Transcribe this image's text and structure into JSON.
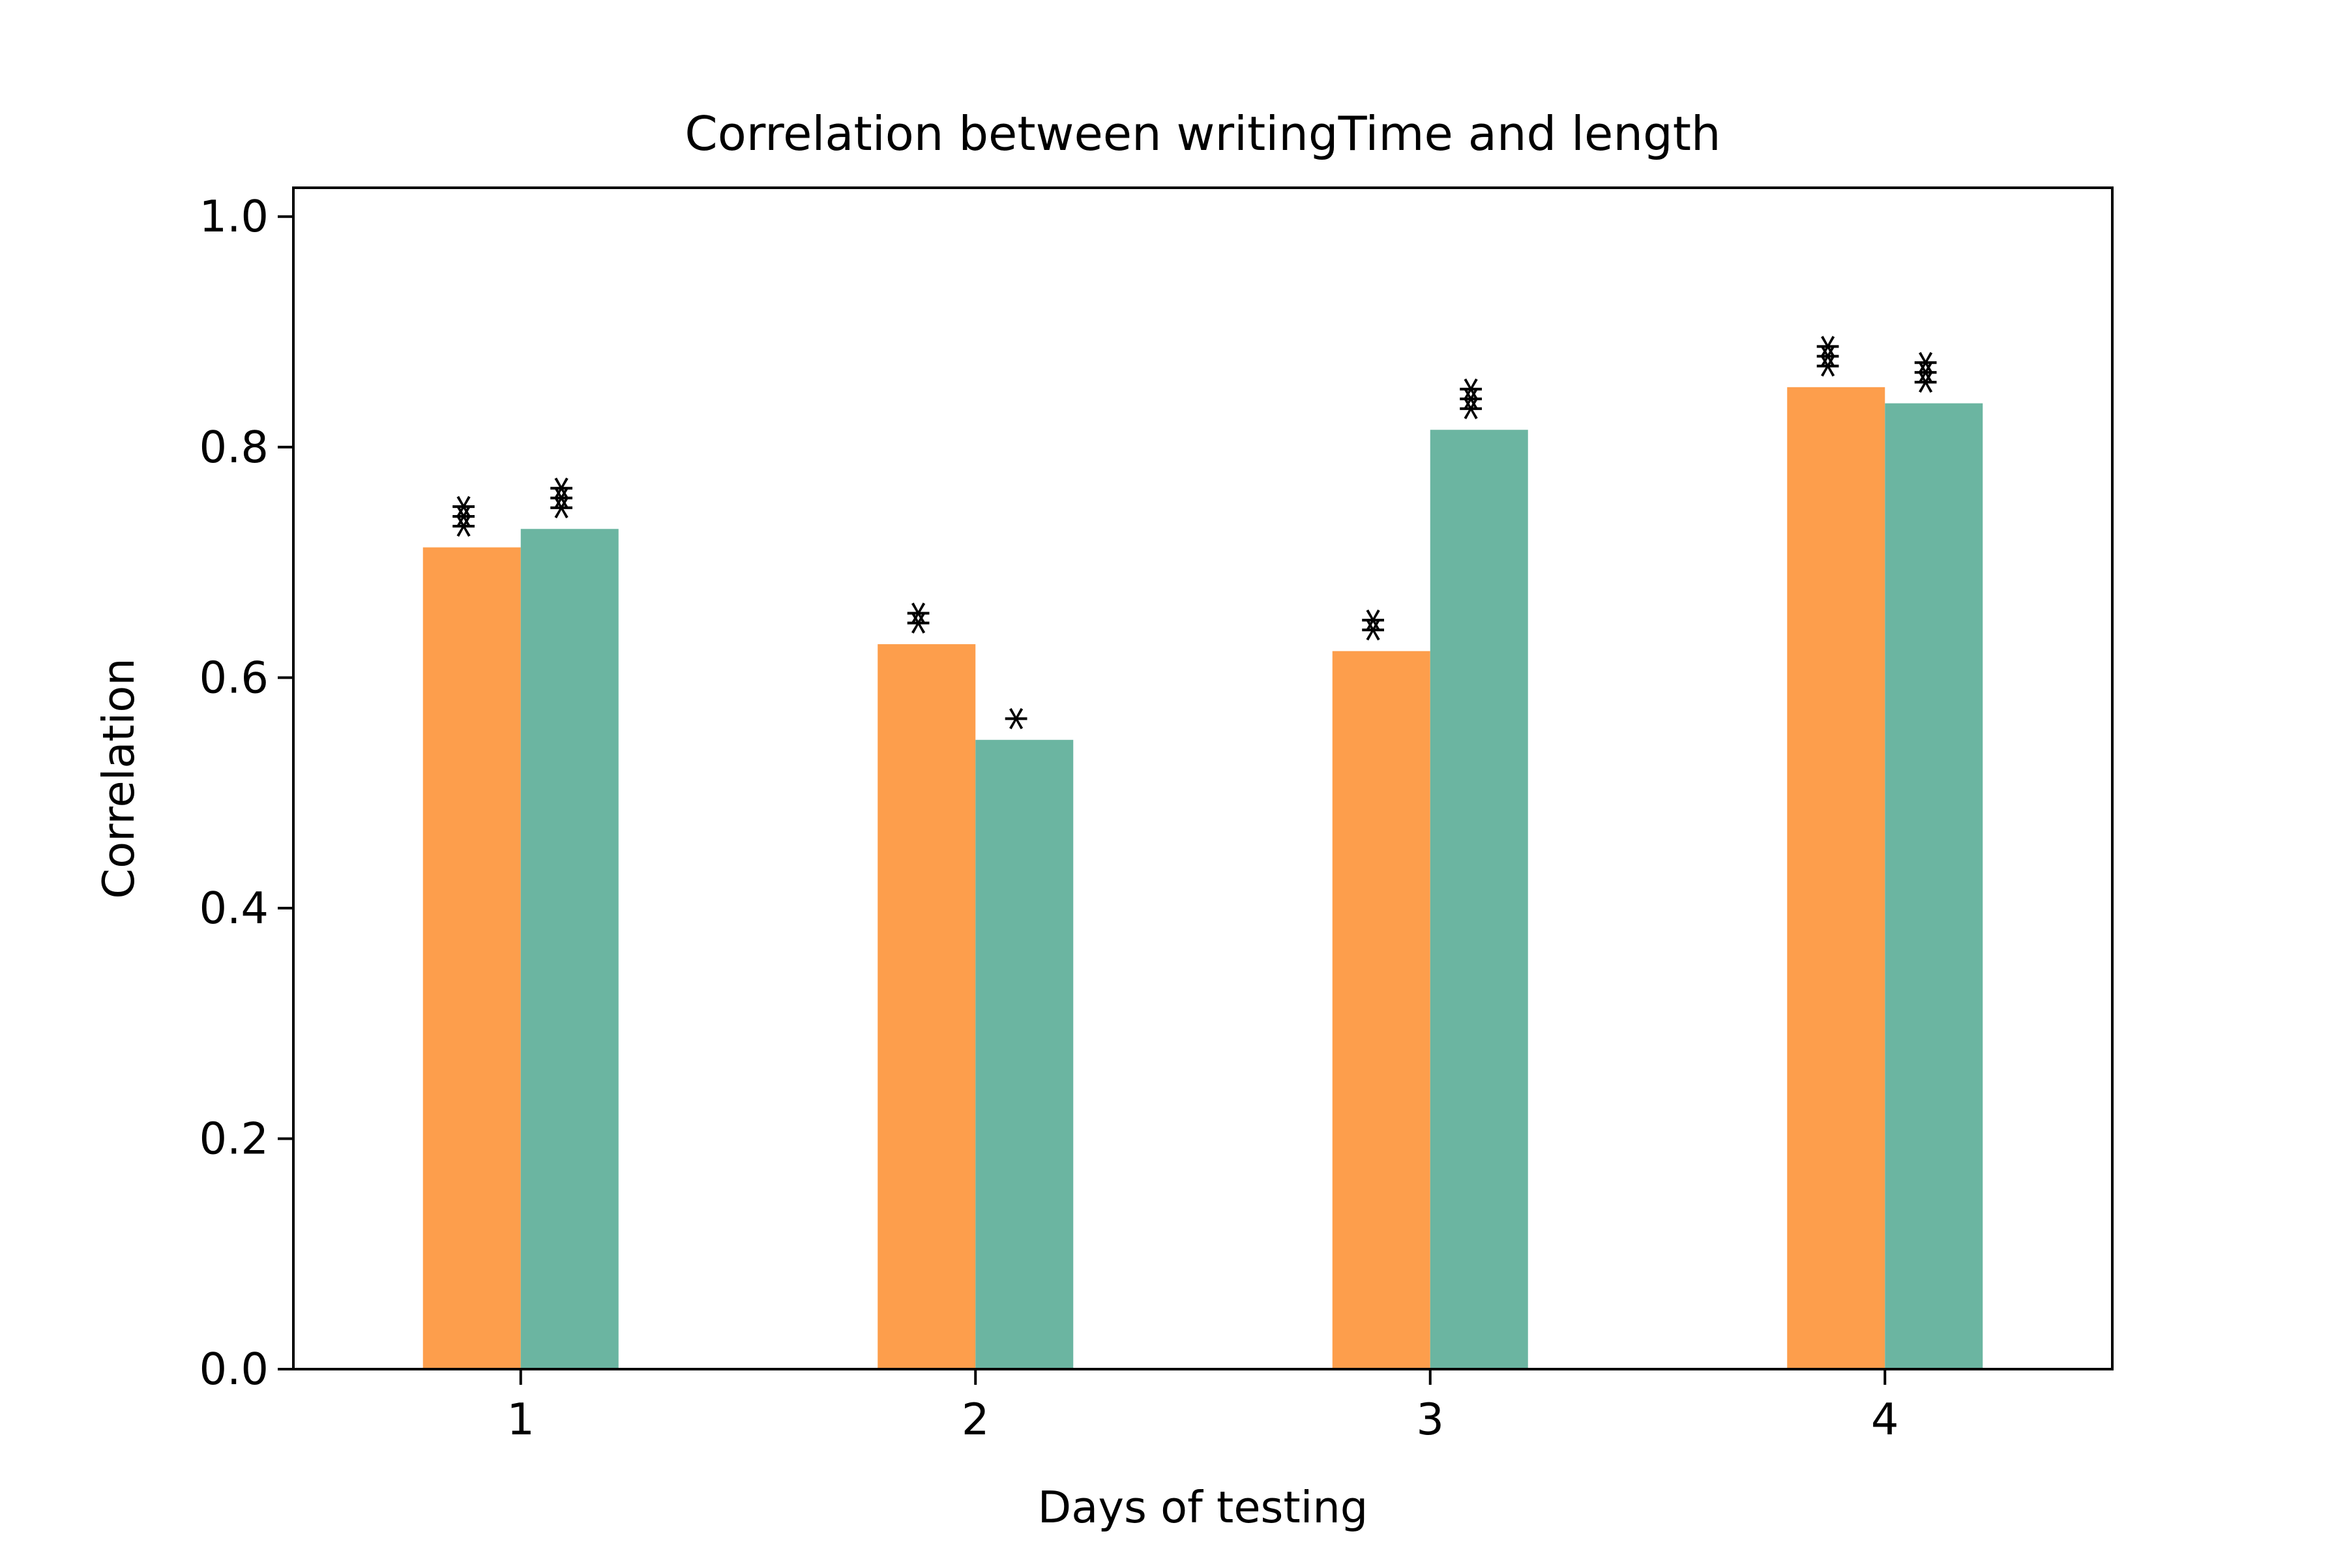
{
  "chart_data": {
    "type": "bar",
    "title": "Correlation between writingTime and length",
    "xlabel": "Days of testing",
    "ylabel": "Correlation",
    "categories": [
      "1",
      "2",
      "3",
      "4"
    ],
    "ylim": [
      0,
      1.025
    ],
    "yticks": [
      "0.0",
      "0.2",
      "0.4",
      "0.6",
      "0.8",
      "1.0"
    ],
    "series": [
      {
        "color": "#fd9e4c",
        "values": [
          0.713,
          0.629,
          0.623,
          0.852
        ],
        "annotations": [
          "***",
          "**",
          "**",
          "***"
        ]
      },
      {
        "color": "#6bb5a1",
        "values": [
          0.729,
          0.546,
          0.815,
          0.838
        ],
        "annotations": [
          "***",
          "*",
          "***",
          "***"
        ]
      }
    ],
    "grid": false,
    "legend": "none"
  }
}
